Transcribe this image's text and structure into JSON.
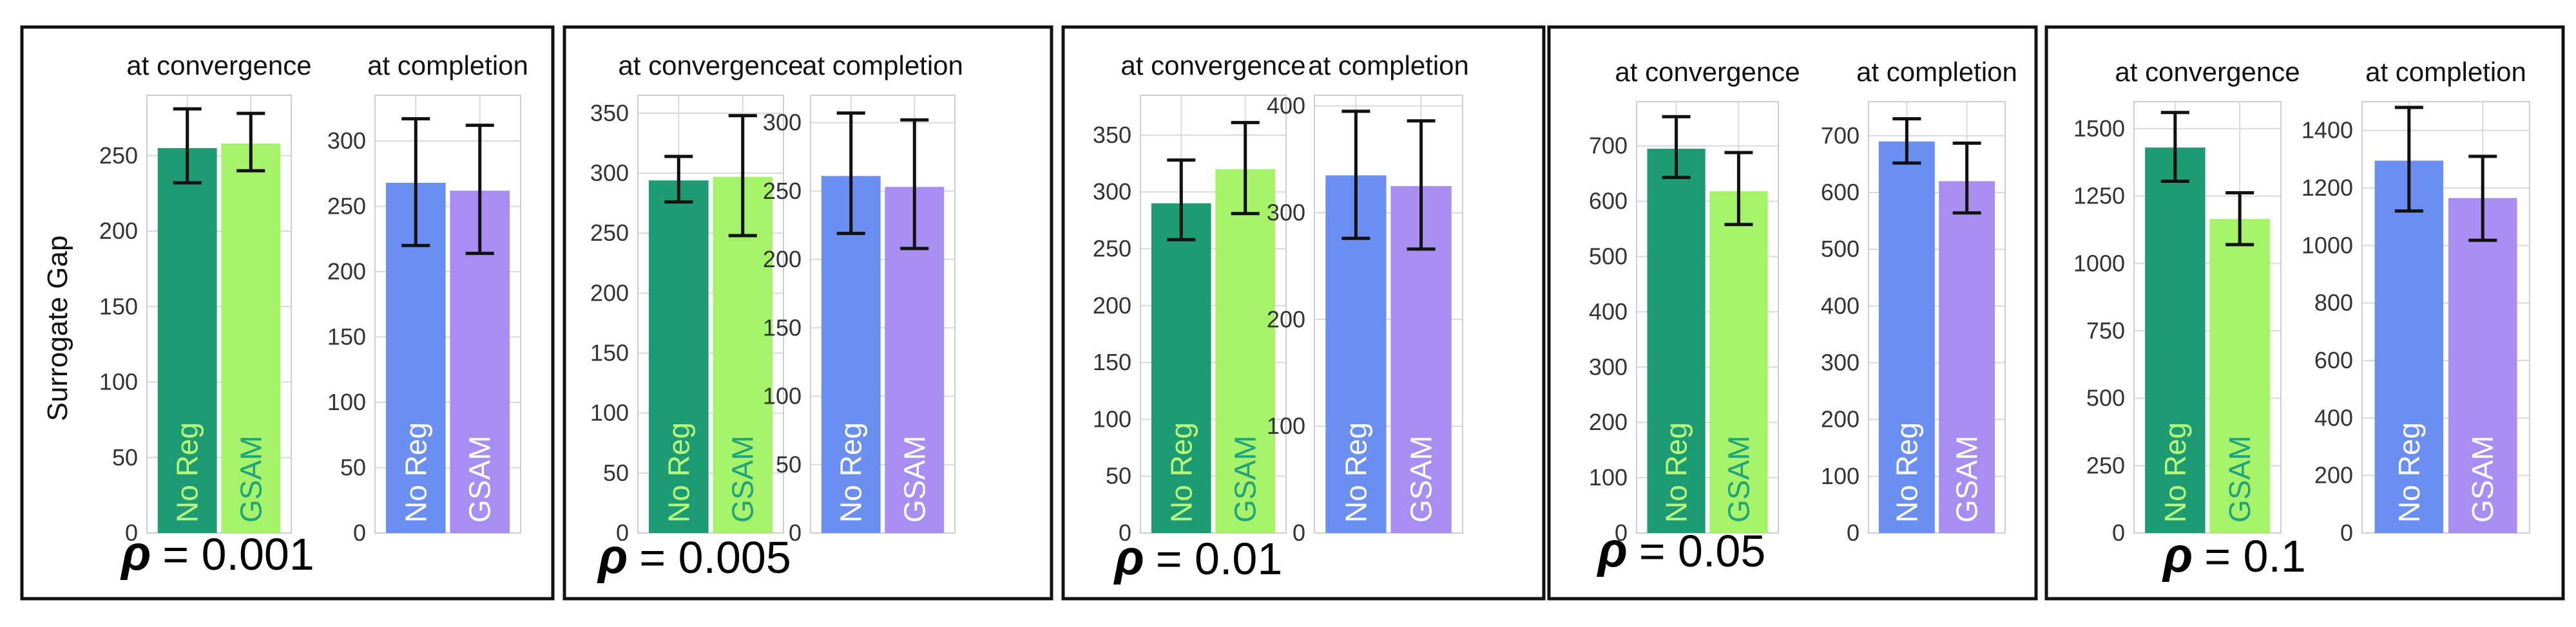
{
  "figure": {
    "y_axis_label": "Surrogate Gap",
    "subplot_titles": [
      "at convergence",
      "at completion"
    ],
    "rho_symbol": "ρ",
    "colors": {
      "no_reg_convergence": "#1f9b73",
      "gsam_convergence": "#a6f26a",
      "no_reg_completion": "#6b8ff0",
      "gsam_completion": "#a88ef0",
      "label_on_dark_green": "#b8ff7a",
      "label_on_light_green": "#1fa37a",
      "label_on_blue_purple": "#ffffff",
      "grid": "#d9d9d9",
      "error_bar": "#111111"
    }
  },
  "chart_data": [
    {
      "rho": "= 0.001",
      "plots": [
        {
          "title": "at convergence",
          "type": "bar",
          "categories": [
            "No Reg",
            "GSAM"
          ],
          "values": [
            255,
            258
          ],
          "errors": [
            [
              232,
              281
            ],
            [
              240,
              278
            ]
          ],
          "ylim": [
            0,
            290
          ],
          "yticks": [
            0,
            50,
            100,
            150,
            200,
            250
          ]
        },
        {
          "title": "at completion",
          "type": "bar",
          "categories": [
            "No Reg",
            "GSAM"
          ],
          "values": [
            268,
            262
          ],
          "errors": [
            [
              220,
              317
            ],
            [
              214,
              312
            ]
          ],
          "ylim": [
            0,
            335
          ],
          "yticks": [
            0,
            50,
            100,
            150,
            200,
            250,
            300
          ]
        }
      ]
    },
    {
      "rho": "= 0.005",
      "plots": [
        {
          "title": "at convergence",
          "type": "bar",
          "categories": [
            "No Reg",
            "GSAM"
          ],
          "values": [
            294,
            297
          ],
          "errors": [
            [
              276,
              314
            ],
            [
              248,
              348
            ]
          ],
          "ylim": [
            0,
            365
          ],
          "yticks": [
            0,
            50,
            100,
            150,
            200,
            250,
            300,
            350
          ]
        },
        {
          "title": "at completion",
          "type": "bar",
          "categories": [
            "No Reg",
            "GSAM"
          ],
          "values": [
            261,
            253
          ],
          "errors": [
            [
              219,
              307
            ],
            [
              208,
              302
            ]
          ],
          "ylim": [
            0,
            320
          ],
          "yticks": [
            0,
            50,
            100,
            150,
            200,
            250,
            300
          ]
        }
      ]
    },
    {
      "rho": "= 0.01",
      "plots": [
        {
          "title": "at convergence",
          "type": "bar",
          "categories": [
            "No Reg",
            "GSAM"
          ],
          "values": [
            290,
            320
          ],
          "errors": [
            [
              258,
              328
            ],
            [
              281,
              361
            ]
          ],
          "ylim": [
            0,
            385
          ],
          "yticks": [
            0,
            50,
            100,
            150,
            200,
            250,
            300,
            350
          ]
        },
        {
          "title": "at completion",
          "type": "bar",
          "categories": [
            "No Reg",
            "GSAM"
          ],
          "values": [
            335,
            325
          ],
          "errors": [
            [
              276,
              395
            ],
            [
              266,
              386
            ]
          ],
          "ylim": [
            0,
            410
          ],
          "yticks": [
            0,
            100,
            200,
            300,
            400
          ]
        }
      ]
    },
    {
      "rho": "= 0.05",
      "plots": [
        {
          "title": "at convergence",
          "type": "bar",
          "categories": [
            "No Reg",
            "GSAM"
          ],
          "values": [
            695,
            618
          ],
          "errors": [
            [
              643,
              753
            ],
            [
              558,
              688
            ]
          ],
          "ylim": [
            0,
            780
          ],
          "yticks": [
            0,
            100,
            200,
            300,
            400,
            500,
            600,
            700
          ]
        },
        {
          "title": "at completion",
          "type": "bar",
          "categories": [
            "No Reg",
            "GSAM"
          ],
          "values": [
            690,
            620
          ],
          "errors": [
            [
              652,
              730
            ],
            [
              564,
              687
            ]
          ],
          "ylim": [
            0,
            760
          ],
          "yticks": [
            0,
            100,
            200,
            300,
            400,
            500,
            600,
            700
          ]
        }
      ]
    },
    {
      "rho": "= 0.1",
      "plots": [
        {
          "title": "at convergence",
          "type": "bar",
          "categories": [
            "No Reg",
            "GSAM"
          ],
          "values": [
            1430,
            1165
          ],
          "errors": [
            [
              1305,
              1560
            ],
            [
              1070,
              1262
            ]
          ],
          "ylim": [
            0,
            1600
          ],
          "yticks": [
            0,
            250,
            500,
            750,
            1000,
            1250,
            1500
          ]
        },
        {
          "title": "at completion",
          "type": "bar",
          "categories": [
            "No Reg",
            "GSAM"
          ],
          "values": [
            1295,
            1165
          ],
          "errors": [
            [
              1120,
              1480
            ],
            [
              1018,
              1310
            ]
          ],
          "ylim": [
            0,
            1500
          ],
          "yticks": [
            0,
            200,
            400,
            600,
            800,
            1000,
            1200,
            1400
          ]
        }
      ]
    }
  ]
}
